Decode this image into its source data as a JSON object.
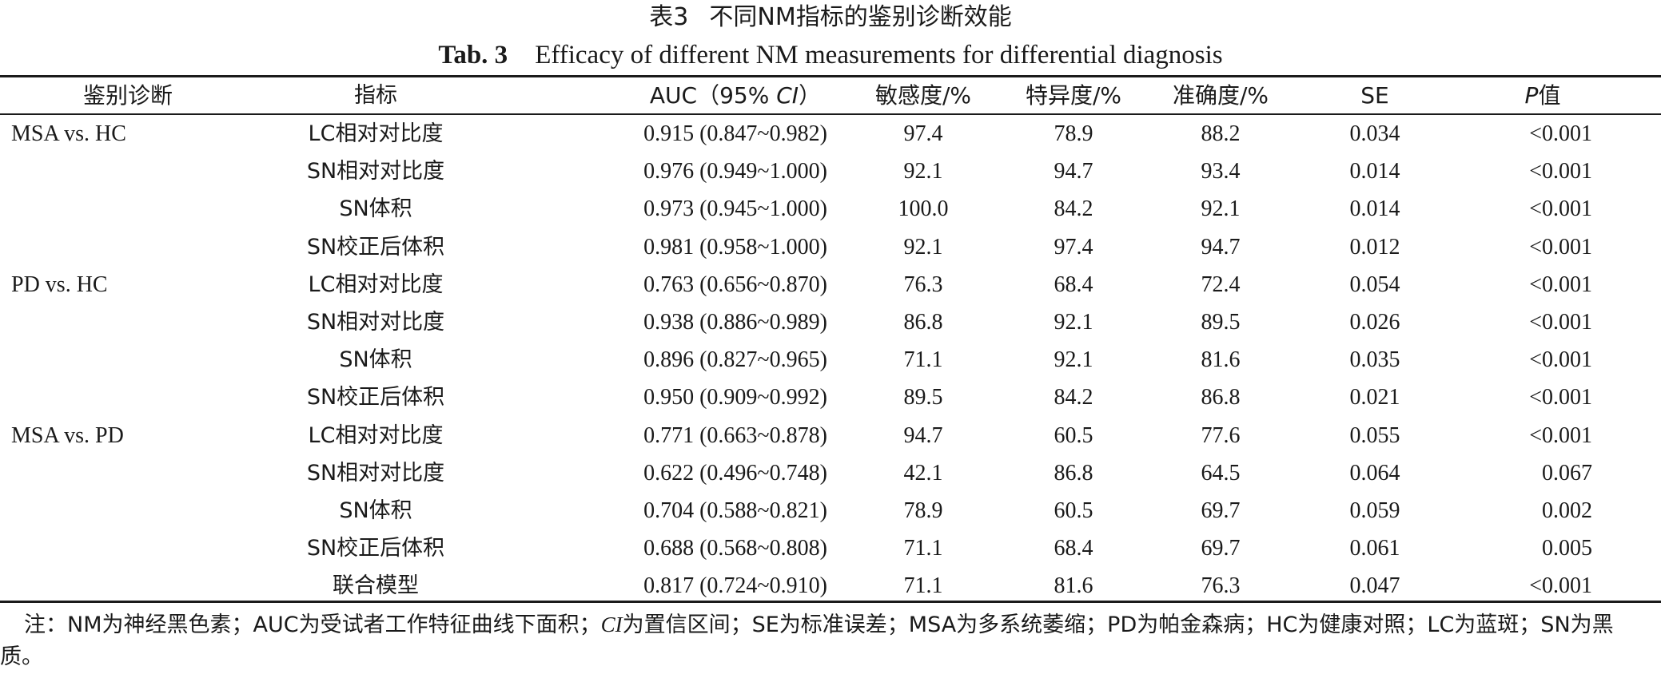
{
  "title_cn": {
    "number": "表3",
    "text": "不同NM指标的鉴别诊断效能"
  },
  "title_en": {
    "number": "Tab. 3",
    "text": "Efficacy of different NM measurements for differential diagnosis"
  },
  "headers": {
    "diagnosis": "鉴别诊断",
    "indicator": "指标",
    "auc_prefix": "AUC（95% ",
    "auc_ci": "CI",
    "auc_suffix": "）",
    "sensitivity": "敏感度/%",
    "specificity": "特异度/%",
    "accuracy": "准确度/%",
    "se": "SE",
    "p_letter": "P",
    "p_suffix": "值"
  },
  "rows": [
    {
      "diagnosis": "MSA vs. HC",
      "indicator": "LC相对对比度",
      "auc": "0.915 (0.847~0.982)",
      "sensitivity": "97.4",
      "specificity": "78.9",
      "accuracy": "88.2",
      "se": "0.034",
      "p": "<0.001"
    },
    {
      "diagnosis": "",
      "indicator": "SN相对对比度",
      "auc": "0.976 (0.949~1.000)",
      "sensitivity": "92.1",
      "specificity": "94.7",
      "accuracy": "93.4",
      "se": "0.014",
      "p": "<0.001"
    },
    {
      "diagnosis": "",
      "indicator": "SN体积",
      "auc": "0.973 (0.945~1.000)",
      "sensitivity": "100.0",
      "specificity": "84.2",
      "accuracy": "92.1",
      "se": "0.014",
      "p": "<0.001"
    },
    {
      "diagnosis": "",
      "indicator": "SN校正后体积",
      "auc": "0.981 (0.958~1.000)",
      "sensitivity": "92.1",
      "specificity": "97.4",
      "accuracy": "94.7",
      "se": "0.012",
      "p": "<0.001"
    },
    {
      "diagnosis": "PD vs. HC",
      "indicator": "LC相对对比度",
      "auc": "0.763 (0.656~0.870)",
      "sensitivity": "76.3",
      "specificity": "68.4",
      "accuracy": "72.4",
      "se": "0.054",
      "p": "<0.001"
    },
    {
      "diagnosis": "",
      "indicator": "SN相对对比度",
      "auc": "0.938 (0.886~0.989)",
      "sensitivity": "86.8",
      "specificity": "92.1",
      "accuracy": "89.5",
      "se": "0.026",
      "p": "<0.001"
    },
    {
      "diagnosis": "",
      "indicator": "SN体积",
      "auc": "0.896 (0.827~0.965)",
      "sensitivity": "71.1",
      "specificity": "92.1",
      "accuracy": "81.6",
      "se": "0.035",
      "p": "<0.001"
    },
    {
      "diagnosis": "",
      "indicator": "SN校正后体积",
      "auc": "0.950 (0.909~0.992)",
      "sensitivity": "89.5",
      "specificity": "84.2",
      "accuracy": "86.8",
      "se": "0.021",
      "p": "<0.001"
    },
    {
      "diagnosis": "MSA vs. PD",
      "indicator": "LC相对对比度",
      "auc": "0.771 (0.663~0.878)",
      "sensitivity": "94.7",
      "specificity": "60.5",
      "accuracy": "77.6",
      "se": "0.055",
      "p": "<0.001"
    },
    {
      "diagnosis": "",
      "indicator": "SN相对对比度",
      "auc": "0.622 (0.496~0.748)",
      "sensitivity": "42.1",
      "specificity": "86.8",
      "accuracy": "64.5",
      "se": "0.064",
      "p": "0.067"
    },
    {
      "diagnosis": "",
      "indicator": "SN体积",
      "auc": "0.704 (0.588~0.821)",
      "sensitivity": "78.9",
      "specificity": "60.5",
      "accuracy": "69.7",
      "se": "0.059",
      "p": "0.002"
    },
    {
      "diagnosis": "",
      "indicator": "SN校正后体积",
      "auc": "0.688 (0.568~0.808)",
      "sensitivity": "71.1",
      "specificity": "68.4",
      "accuracy": "69.7",
      "se": "0.061",
      "p": "0.005"
    },
    {
      "diagnosis": "",
      "indicator": "联合模型",
      "auc": "0.817 (0.724~0.910)",
      "sensitivity": "71.1",
      "specificity": "81.6",
      "accuracy": "76.3",
      "se": "0.047",
      "p": "<0.001"
    }
  ],
  "note": {
    "part1": "注：NM为神经黑色素；AUC为受试者工作特征曲线下面积；",
    "ci": "CI",
    "part2": "为置信区间；SE为标准误差；MSA为多系统萎缩；PD为帕金森病；HC为健康对照；LC为蓝斑；SN为黑质。"
  }
}
